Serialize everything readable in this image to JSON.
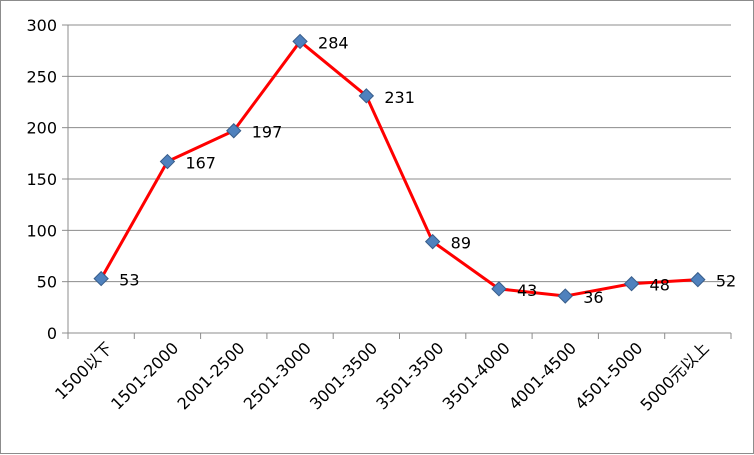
{
  "chart_data": {
    "type": "line",
    "title": "",
    "xlabel": "",
    "ylabel": "",
    "ylim": [
      0,
      300
    ],
    "yticks": [
      0,
      50,
      100,
      150,
      200,
      250,
      300
    ],
    "grid": true,
    "legend": "none",
    "categories": [
      "1500以下",
      "1501-2000",
      "2001-2500",
      "2501-3000",
      "3001-3500",
      "3501-3500",
      "3501-4000",
      "4001-4500",
      "4501-5000",
      "5000元以上"
    ],
    "series": [
      {
        "values": [
          53,
          167,
          197,
          284,
          231,
          89,
          43,
          36,
          48,
          52
        ],
        "line_color": "#ff0000",
        "marker_color": "#4f81bd"
      }
    ]
  }
}
